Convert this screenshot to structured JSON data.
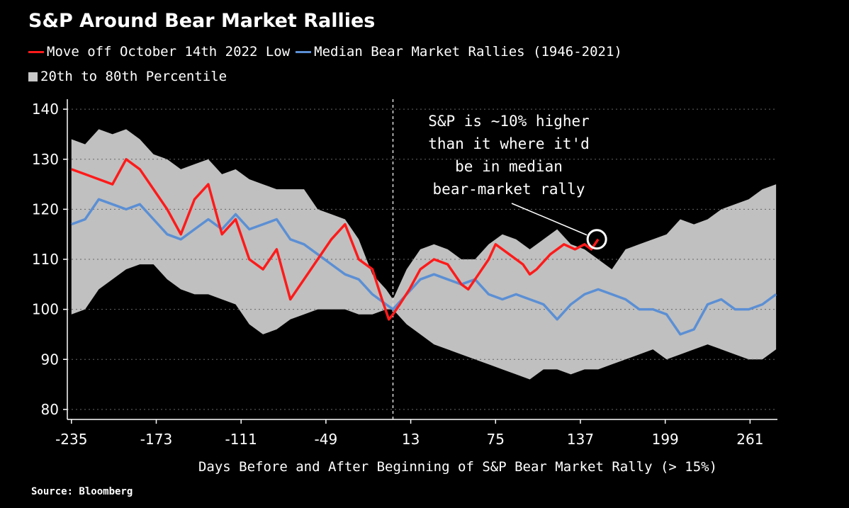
{
  "chart_data": {
    "type": "area",
    "title": "S&P Around Bear Market Rallies",
    "xlabel": "Days Before and After Beginning of S&P Bear Market Rally (> 15%)",
    "ylabel": "",
    "xlim": [
      -238,
      281
    ],
    "ylim": [
      78,
      142
    ],
    "x_ticks": [
      -235,
      -173,
      -111,
      -49,
      13,
      75,
      137,
      199,
      261
    ],
    "y_ticks": [
      80,
      90,
      100,
      110,
      120,
      130,
      140
    ],
    "x_tick_labels": [
      "-235",
      "-173",
      "-111",
      "-49",
      "13",
      "75",
      "137",
      "199",
      "261"
    ],
    "y_tick_labels": [
      "80",
      "90",
      "100",
      "110",
      "120",
      "130",
      "140"
    ],
    "grid": true,
    "legend_position": "top-left",
    "reference_line": {
      "x": 0,
      "style": "dashed"
    },
    "series": [
      {
        "name": "Move off October 14th 2022 Low",
        "color": "#ff1a1a",
        "type": "line",
        "x": [
          -235,
          -225,
          -215,
          -205,
          -195,
          -185,
          -175,
          -165,
          -155,
          -145,
          -135,
          -125,
          -115,
          -105,
          -95,
          -85,
          -75,
          -65,
          -55,
          -45,
          -35,
          -25,
          -15,
          -8,
          -3,
          0,
          5,
          12,
          20,
          30,
          40,
          50,
          55,
          60,
          70,
          75,
          85,
          95,
          100,
          105,
          115,
          125,
          133,
          140,
          145,
          150
        ],
        "values": [
          128,
          127,
          126,
          125,
          130,
          128,
          124,
          120,
          115,
          122,
          125,
          115,
          118,
          110,
          108,
          112,
          102,
          106,
          110,
          114,
          117,
          110,
          108,
          102,
          98,
          99,
          101,
          104,
          108,
          110,
          109,
          105,
          104,
          106,
          110,
          113,
          111,
          109,
          107,
          108,
          111,
          113,
          112,
          113,
          112,
          114
        ]
      },
      {
        "name": "Median Bear Market Rallies (1946-2021)",
        "color": "#5b8fd4",
        "type": "line",
        "x": [
          -235,
          -225,
          -215,
          -205,
          -195,
          -185,
          -175,
          -165,
          -155,
          -145,
          -135,
          -125,
          -115,
          -105,
          -95,
          -85,
          -75,
          -65,
          -55,
          -45,
          -35,
          -25,
          -15,
          -5,
          0,
          10,
          20,
          30,
          40,
          50,
          60,
          70,
          80,
          90,
          100,
          110,
          120,
          130,
          140,
          150,
          160,
          170,
          180,
          190,
          200,
          210,
          220,
          230,
          240,
          250,
          260,
          270,
          280
        ],
        "values": [
          117,
          118,
          122,
          121,
          120,
          121,
          118,
          115,
          114,
          116,
          118,
          116,
          119,
          116,
          117,
          118,
          114,
          113,
          111,
          109,
          107,
          106,
          103,
          101,
          100,
          103,
          106,
          107,
          106,
          105,
          106,
          103,
          102,
          103,
          102,
          101,
          98,
          101,
          103,
          104,
          103,
          102,
          100,
          100,
          99,
          95,
          96,
          101,
          102,
          100,
          100,
          101,
          103
        ]
      },
      {
        "name": "20th to 80th Percentile",
        "color": "#c0c0c0",
        "type": "band",
        "x": [
          -235,
          -225,
          -215,
          -205,
          -195,
          -185,
          -175,
          -165,
          -155,
          -145,
          -135,
          -125,
          -115,
          -105,
          -95,
          -85,
          -75,
          -65,
          -55,
          -45,
          -35,
          -25,
          -15,
          -5,
          0,
          10,
          20,
          30,
          40,
          50,
          60,
          70,
          80,
          90,
          100,
          110,
          120,
          130,
          140,
          150,
          160,
          170,
          180,
          190,
          200,
          210,
          220,
          230,
          240,
          250,
          260,
          270,
          280
        ],
        "upper": [
          134,
          133,
          136,
          135,
          136,
          134,
          131,
          130,
          128,
          129,
          130,
          127,
          128,
          126,
          125,
          124,
          124,
          124,
          120,
          119,
          118,
          114,
          107,
          104,
          102,
          108,
          112,
          113,
          112,
          110,
          110,
          113,
          115,
          114,
          112,
          114,
          116,
          113,
          112,
          110,
          108,
          112,
          113,
          114,
          115,
          118,
          117,
          118,
          120,
          121,
          122,
          124,
          125
        ],
        "lower": [
          99,
          100,
          104,
          106,
          108,
          109,
          109,
          106,
          104,
          103,
          103,
          102,
          101,
          97,
          95,
          96,
          98,
          99,
          100,
          100,
          100,
          99,
          99,
          100,
          100,
          97,
          95,
          93,
          92,
          91,
          90,
          89,
          88,
          87,
          86,
          88,
          88,
          87,
          88,
          88,
          89,
          90,
          91,
          92,
          90,
          91,
          92,
          93,
          92,
          91,
          90,
          90,
          92
        ]
      }
    ],
    "annotation": {
      "lines": [
        "S&P is ~10% higher",
        "than it where it'd",
        "be in median",
        "bear-market rally"
      ],
      "target": {
        "x": 149,
        "y": 114
      }
    }
  },
  "legend": {
    "red_label": "Move off October 14th 2022 Low",
    "blue_label": "Median Bear Market Rallies (1946-2021)",
    "gray_label": "20th to 80th Percentile"
  },
  "source": "Source: Bloomberg"
}
